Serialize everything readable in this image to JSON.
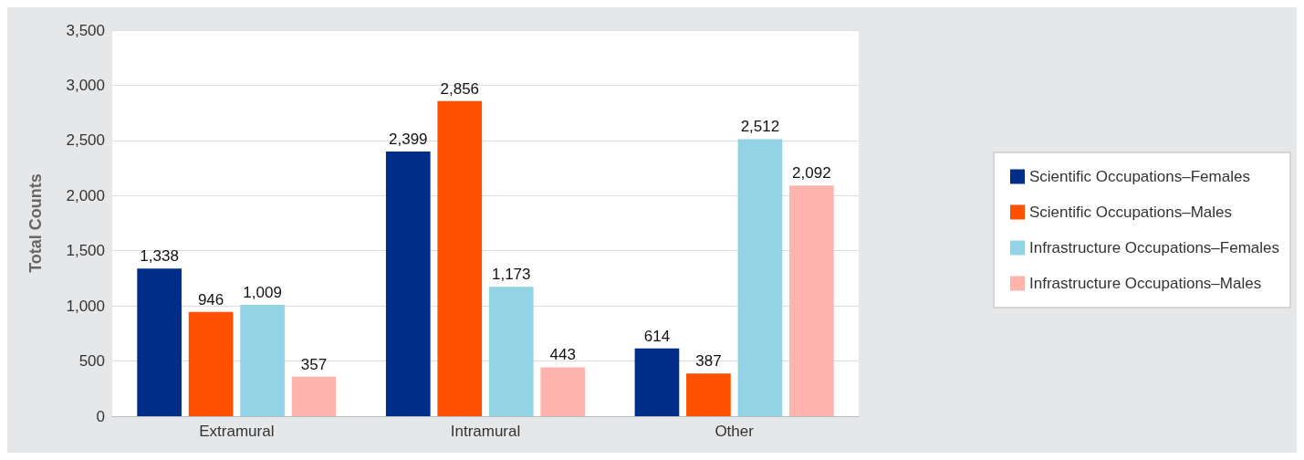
{
  "chart_data": {
    "type": "bar",
    "ylabel": "Total Counts",
    "categories": [
      "Extramural",
      "Intramural",
      "Other"
    ],
    "series": [
      {
        "name": "Scientific Occupations–Females",
        "color": "#002d87",
        "values": [
          1338,
          2399,
          614
        ],
        "value_labels": [
          "1,338",
          "2,399",
          "614"
        ]
      },
      {
        "name": "Scientific Occupations–Males",
        "color": "#ff5000",
        "values": [
          946,
          2856,
          387
        ],
        "value_labels": [
          "946",
          "2,856",
          "387"
        ]
      },
      {
        "name": "Infrastructure Occupations–Females",
        "color": "#92d4e6",
        "values": [
          1009,
          1173,
          2512
        ],
        "value_labels": [
          "1,009",
          "1,173",
          "2,512"
        ]
      },
      {
        "name": "Infrastructure Occupations–Males",
        "color": "#ffb3ad",
        "values": [
          357,
          443,
          2092
        ],
        "value_labels": [
          "357",
          "443",
          "2,092"
        ]
      }
    ],
    "ylim": [
      0,
      3500
    ],
    "yticks": [
      0,
      {
        "value": 500,
        "label": "500"
      },
      {
        "value": 1000,
        "label": "1,000"
      },
      {
        "value": 1500,
        "label": "1,500"
      },
      {
        "value": 2000,
        "label": "2,000"
      },
      {
        "value": 2500,
        "label": "2,500"
      },
      {
        "value": 3000,
        "label": "3,000"
      },
      {
        "value": 3500,
        "label": "3,500"
      }
    ],
    "grid": "y",
    "legend": "right"
  }
}
